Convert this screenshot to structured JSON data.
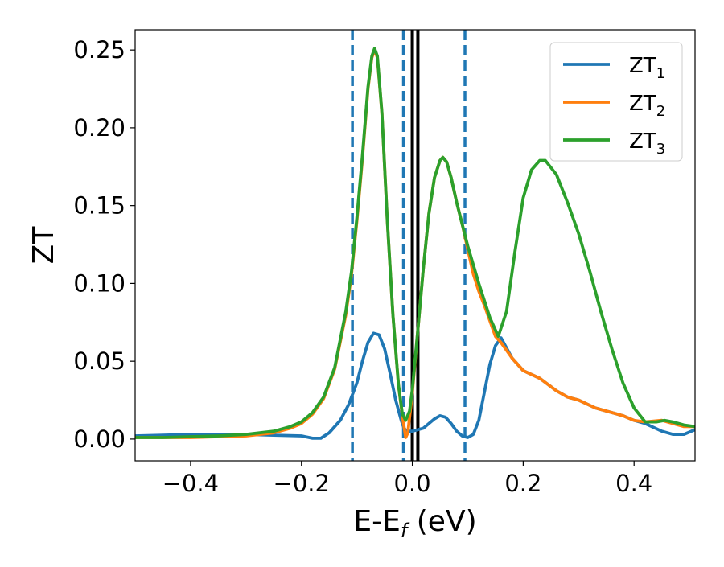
{
  "chart_data": {
    "type": "line",
    "xlabel": "E-E",
    "xlabel_sub": "f",
    "xlabel_unit": " (eV)",
    "ylabel": "ZT",
    "xlim": [
      -0.5,
      0.51
    ],
    "ylim": [
      -0.014,
      0.263
    ],
    "xticks": [
      -0.4,
      -0.2,
      0.0,
      0.2,
      0.4
    ],
    "xtick_labels": [
      "−0.4",
      "−0.2",
      "0.0",
      "0.2",
      "0.4"
    ],
    "yticks": [
      0.0,
      0.05,
      0.1,
      0.15,
      0.2,
      0.25
    ],
    "ytick_labels": [
      "0.00",
      "0.05",
      "0.10",
      "0.15",
      "0.20",
      "0.25"
    ],
    "legend_position": "top-right",
    "vertical_lines": [
      {
        "x": -0.108,
        "style": "dashed",
        "color": "#1f77b4"
      },
      {
        "x": -0.016,
        "style": "dashed",
        "color": "#1f77b4"
      },
      {
        "x": 0.0,
        "style": "solid",
        "color": "#000000"
      },
      {
        "x": 0.01,
        "style": "solid",
        "color": "#000000"
      },
      {
        "x": 0.095,
        "style": "dashed",
        "color": "#1f77b4"
      }
    ],
    "series": [
      {
        "name": "ZT",
        "name_sub": "1",
        "color": "#1f77b4",
        "points": [
          [
            -0.5,
            0.002
          ],
          [
            -0.45,
            0.0025
          ],
          [
            -0.4,
            0.003
          ],
          [
            -0.35,
            0.003
          ],
          [
            -0.3,
            0.003
          ],
          [
            -0.25,
            0.0025
          ],
          [
            -0.2,
            0.002
          ],
          [
            -0.18,
            0.0005
          ],
          [
            -0.165,
            0.0005
          ],
          [
            -0.15,
            0.004
          ],
          [
            -0.13,
            0.012
          ],
          [
            -0.115,
            0.022
          ],
          [
            -0.1,
            0.036
          ],
          [
            -0.09,
            0.05
          ],
          [
            -0.08,
            0.062
          ],
          [
            -0.07,
            0.068
          ],
          [
            -0.06,
            0.067
          ],
          [
            -0.05,
            0.058
          ],
          [
            -0.04,
            0.042
          ],
          [
            -0.03,
            0.025
          ],
          [
            -0.02,
            0.012
          ],
          [
            -0.015,
            0.007
          ],
          [
            -0.01,
            0.005
          ],
          [
            0.0,
            0.005
          ],
          [
            0.01,
            0.006
          ],
          [
            0.02,
            0.007
          ],
          [
            0.03,
            0.01
          ],
          [
            0.04,
            0.013
          ],
          [
            0.05,
            0.015
          ],
          [
            0.06,
            0.014
          ],
          [
            0.07,
            0.01
          ],
          [
            0.08,
            0.005
          ],
          [
            0.09,
            0.002
          ],
          [
            0.1,
            0.001
          ],
          [
            0.11,
            0.003
          ],
          [
            0.12,
            0.012
          ],
          [
            0.13,
            0.03
          ],
          [
            0.14,
            0.048
          ],
          [
            0.15,
            0.06
          ],
          [
            0.16,
            0.065
          ],
          [
            0.18,
            0.052
          ],
          [
            0.2,
            0.044
          ],
          [
            0.23,
            0.039
          ],
          [
            0.26,
            0.031
          ],
          [
            0.28,
            0.027
          ],
          [
            0.3,
            0.025
          ],
          [
            0.33,
            0.02
          ],
          [
            0.36,
            0.017
          ],
          [
            0.38,
            0.015
          ],
          [
            0.4,
            0.012
          ],
          [
            0.42,
            0.01
          ],
          [
            0.45,
            0.005
          ],
          [
            0.47,
            0.003
          ],
          [
            0.49,
            0.003
          ],
          [
            0.51,
            0.006
          ]
        ]
      },
      {
        "name": "ZT",
        "name_sub": "2",
        "color": "#ff7f0e",
        "points": [
          [
            -0.5,
            0.001
          ],
          [
            -0.45,
            0.001
          ],
          [
            -0.4,
            0.001
          ],
          [
            -0.35,
            0.0015
          ],
          [
            -0.3,
            0.002
          ],
          [
            -0.25,
            0.004
          ],
          [
            -0.22,
            0.007
          ],
          [
            -0.2,
            0.01
          ],
          [
            -0.18,
            0.016
          ],
          [
            -0.16,
            0.026
          ],
          [
            -0.14,
            0.045
          ],
          [
            -0.12,
            0.08
          ],
          [
            -0.11,
            0.105
          ],
          [
            -0.1,
            0.14
          ],
          [
            -0.09,
            0.18
          ],
          [
            -0.08,
            0.225
          ],
          [
            -0.073,
            0.245
          ],
          [
            -0.068,
            0.25
          ],
          [
            -0.063,
            0.245
          ],
          [
            -0.055,
            0.21
          ],
          [
            -0.045,
            0.14
          ],
          [
            -0.035,
            0.08
          ],
          [
            -0.025,
            0.035
          ],
          [
            -0.018,
            0.015
          ],
          [
            -0.012,
            0.001
          ],
          [
            -0.008,
            0.004
          ],
          [
            0.0,
            0.03
          ],
          [
            0.01,
            0.07
          ],
          [
            0.02,
            0.11
          ],
          [
            0.03,
            0.145
          ],
          [
            0.04,
            0.168
          ],
          [
            0.05,
            0.179
          ],
          [
            0.055,
            0.181
          ],
          [
            0.062,
            0.178
          ],
          [
            0.07,
            0.168
          ],
          [
            0.08,
            0.152
          ],
          [
            0.09,
            0.138
          ],
          [
            0.1,
            0.122
          ],
          [
            0.11,
            0.106
          ],
          [
            0.12,
            0.095
          ],
          [
            0.13,
            0.086
          ],
          [
            0.14,
            0.076
          ],
          [
            0.15,
            0.066
          ],
          [
            0.16,
            0.062
          ],
          [
            0.18,
            0.052
          ],
          [
            0.2,
            0.044
          ],
          [
            0.23,
            0.039
          ],
          [
            0.26,
            0.031
          ],
          [
            0.28,
            0.027
          ],
          [
            0.3,
            0.025
          ],
          [
            0.33,
            0.02
          ],
          [
            0.36,
            0.017
          ],
          [
            0.38,
            0.015
          ],
          [
            0.4,
            0.012
          ],
          [
            0.42,
            0.011
          ],
          [
            0.45,
            0.012
          ],
          [
            0.47,
            0.01
          ],
          [
            0.49,
            0.008
          ],
          [
            0.51,
            0.008
          ]
        ]
      },
      {
        "name": "ZT",
        "name_sub": "3",
        "color": "#2ca02c",
        "points": [
          [
            -0.5,
            0.001
          ],
          [
            -0.45,
            0.001
          ],
          [
            -0.4,
            0.0015
          ],
          [
            -0.35,
            0.002
          ],
          [
            -0.3,
            0.003
          ],
          [
            -0.25,
            0.005
          ],
          [
            -0.22,
            0.008
          ],
          [
            -0.2,
            0.011
          ],
          [
            -0.18,
            0.017
          ],
          [
            -0.16,
            0.027
          ],
          [
            -0.14,
            0.046
          ],
          [
            -0.12,
            0.082
          ],
          [
            -0.11,
            0.107
          ],
          [
            -0.1,
            0.142
          ],
          [
            -0.09,
            0.182
          ],
          [
            -0.08,
            0.226
          ],
          [
            -0.073,
            0.246
          ],
          [
            -0.068,
            0.251
          ],
          [
            -0.063,
            0.246
          ],
          [
            -0.055,
            0.21
          ],
          [
            -0.045,
            0.14
          ],
          [
            -0.035,
            0.08
          ],
          [
            -0.025,
            0.035
          ],
          [
            -0.018,
            0.016
          ],
          [
            -0.012,
            0.012
          ],
          [
            -0.005,
            0.018
          ],
          [
            0.0,
            0.032
          ],
          [
            0.01,
            0.07
          ],
          [
            0.02,
            0.11
          ],
          [
            0.03,
            0.145
          ],
          [
            0.04,
            0.168
          ],
          [
            0.05,
            0.179
          ],
          [
            0.055,
            0.181
          ],
          [
            0.062,
            0.178
          ],
          [
            0.07,
            0.168
          ],
          [
            0.08,
            0.152
          ],
          [
            0.09,
            0.138
          ],
          [
            0.1,
            0.124
          ],
          [
            0.12,
            0.1
          ],
          [
            0.14,
            0.078
          ],
          [
            0.155,
            0.066
          ],
          [
            0.17,
            0.082
          ],
          [
            0.185,
            0.12
          ],
          [
            0.2,
            0.155
          ],
          [
            0.215,
            0.173
          ],
          [
            0.23,
            0.179
          ],
          [
            0.24,
            0.179
          ],
          [
            0.26,
            0.17
          ],
          [
            0.28,
            0.152
          ],
          [
            0.3,
            0.132
          ],
          [
            0.32,
            0.108
          ],
          [
            0.34,
            0.082
          ],
          [
            0.36,
            0.058
          ],
          [
            0.38,
            0.036
          ],
          [
            0.4,
            0.02
          ],
          [
            0.42,
            0.011
          ],
          [
            0.44,
            0.011
          ],
          [
            0.455,
            0.012
          ],
          [
            0.47,
            0.011
          ],
          [
            0.49,
            0.009
          ],
          [
            0.51,
            0.008
          ]
        ]
      }
    ]
  }
}
